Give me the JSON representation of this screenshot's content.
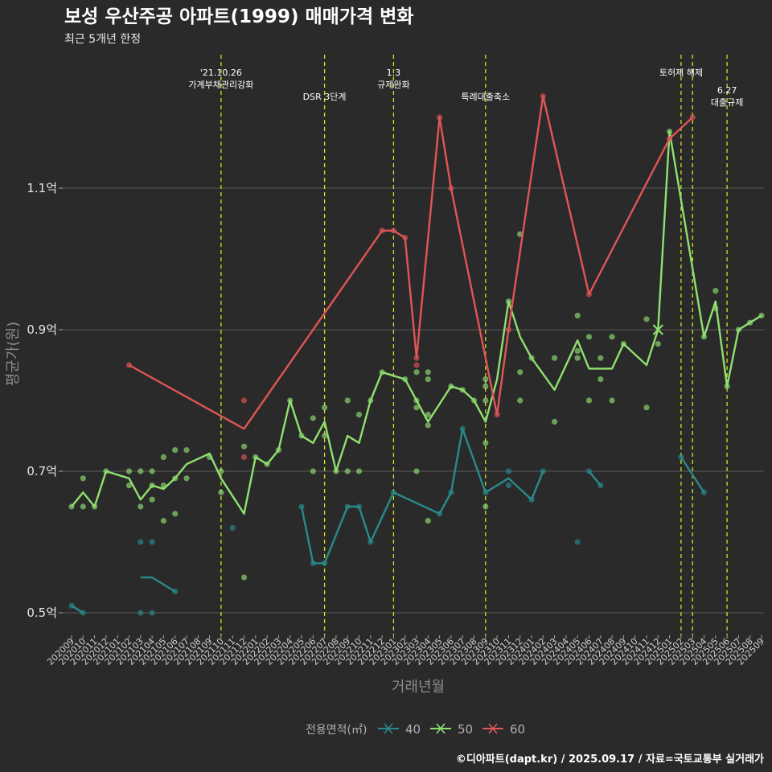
{
  "chart_data": {
    "type": "line",
    "title": "보성 우산주공 아파트(1999) 매매가격 변화",
    "subtitle": "최근 5개년 한정",
    "xlabel": "거래년월",
    "ylabel": "평균가(원)",
    "caption": "©디아파트(dapt.kr) / 2025.09.17 / 자료=국토교통부 실거래가",
    "yticks": [
      {
        "value": 0.5,
        "label": "0.5억"
      },
      {
        "value": 0.7,
        "label": "0.7억"
      },
      {
        "value": 0.9,
        "label": "0.9억"
      },
      {
        "value": 1.1,
        "label": "1.1억"
      }
    ],
    "ylim": [
      0.47,
      1.25
    ],
    "grid": true,
    "legend_position": "bottom",
    "x": [
      "202009",
      "202010",
      "202011",
      "202012",
      "202101",
      "202102",
      "202103",
      "202104",
      "202105",
      "202106",
      "202107",
      "202108",
      "202109",
      "202110",
      "202111",
      "202112",
      "202201",
      "202202",
      "202203",
      "202204",
      "202205",
      "202206",
      "202207",
      "202208",
      "202209",
      "202210",
      "202211",
      "202212",
      "202301",
      "202302",
      "202303",
      "202304",
      "202305",
      "202306",
      "202307",
      "202308",
      "202309",
      "202310",
      "202311",
      "202312",
      "202401",
      "202402",
      "202403",
      "202404",
      "202405",
      "202406",
      "202407",
      "202408",
      "202409",
      "202410",
      "202411",
      "202412",
      "202501",
      "202502",
      "202503",
      "202504",
      "202505",
      "202506",
      "202507",
      "202508",
      "202509"
    ],
    "legend": {
      "title": "전용면적(㎡)",
      "items": [
        {
          "label": "40",
          "color": "#2a8a8a"
        },
        {
          "label": "50",
          "color": "#90e070"
        },
        {
          "label": "60",
          "color": "#e05555"
        }
      ]
    },
    "annotations": [
      {
        "x": "202110",
        "lines": [
          "'21.10.26",
          "가계부채관리강화"
        ],
        "tier": 1
      },
      {
        "x": "202207",
        "lines": [
          "DSR 3단계"
        ],
        "tier": 2
      },
      {
        "x": "202301",
        "lines": [
          "1.3",
          "규제완화"
        ],
        "tier": 1
      },
      {
        "x": "202309",
        "lines": [
          "특례대출축소"
        ],
        "tier": 2
      },
      {
        "x": "202502",
        "lines": [
          "토허제 해제"
        ],
        "tier": 1
      },
      {
        "x": "202503",
        "lines": [],
        "tier": 0
      },
      {
        "x": "202506",
        "lines": [
          "6.27",
          "대출규제"
        ],
        "tier": 2
      }
    ],
    "series": [
      {
        "name": "40",
        "color": "#2a8a8a",
        "line": [
          [
            "202009",
            0.51
          ],
          [
            "202010",
            0.5
          ],
          null,
          [
            "202103",
            0.55
          ],
          [
            "202104",
            0.55
          ],
          [
            "202106",
            0.53
          ],
          null,
          [
            "202205",
            0.65
          ],
          [
            "202206",
            0.57
          ],
          [
            "202207",
            0.57
          ],
          [
            "202209",
            0.65
          ],
          [
            "202210",
            0.65
          ],
          [
            "202211",
            0.6
          ],
          [
            "202301",
            0.67
          ],
          [
            "202305",
            0.64
          ],
          [
            "202306",
            0.67
          ],
          [
            "202307",
            0.76
          ],
          [
            "202309",
            0.67
          ],
          [
            "202311",
            0.69
          ],
          [
            "202401",
            0.66
          ],
          [
            "202402",
            0.7
          ],
          null,
          [
            "202406",
            0.7
          ],
          [
            "202407",
            0.68
          ],
          null,
          [
            "202502",
            0.72
          ],
          [
            "202504",
            0.67
          ]
        ],
        "points": [
          [
            "202009",
            0.51
          ],
          [
            "202010",
            0.5
          ],
          [
            "202103",
            0.6
          ],
          [
            "202104",
            0.6
          ],
          [
            "202103",
            0.5
          ],
          [
            "202104",
            0.5
          ],
          [
            "202106",
            0.53
          ],
          [
            "202111",
            0.62
          ],
          [
            "202205",
            0.65
          ],
          [
            "202206",
            0.57
          ],
          [
            "202207",
            0.57
          ],
          [
            "202209",
            0.65
          ],
          [
            "202210",
            0.65
          ],
          [
            "202211",
            0.6
          ],
          [
            "202301",
            0.67
          ],
          [
            "202305",
            0.64
          ],
          [
            "202306",
            0.67
          ],
          [
            "202307",
            0.76
          ],
          [
            "202309",
            0.67
          ],
          [
            "202311",
            0.7
          ],
          [
            "202311",
            0.68
          ],
          [
            "202401",
            0.66
          ],
          [
            "202402",
            0.7
          ],
          [
            "202405",
            0.6
          ],
          [
            "202406",
            0.7
          ],
          [
            "202407",
            0.68
          ],
          [
            "202502",
            0.72
          ],
          [
            "202504",
            0.67
          ]
        ]
      },
      {
        "name": "50",
        "color": "#90e070",
        "line": [
          [
            "202009",
            0.65
          ],
          [
            "202010",
            0.67
          ],
          [
            "202011",
            0.65
          ],
          [
            "202012",
            0.7
          ],
          [
            "202102",
            0.69
          ],
          [
            "202103",
            0.66
          ],
          [
            "202104",
            0.68
          ],
          [
            "202105",
            0.675
          ],
          [
            "202106",
            0.69
          ],
          [
            "202107",
            0.71
          ],
          [
            "202109",
            0.725
          ],
          [
            "202110",
            0.69
          ],
          [
            "202112",
            0.64
          ],
          [
            "202201",
            0.72
          ],
          [
            "202202",
            0.71
          ],
          [
            "202203",
            0.73
          ],
          [
            "202204",
            0.8
          ],
          [
            "202205",
            0.75
          ],
          [
            "202206",
            0.74
          ],
          [
            "202207",
            0.77
          ],
          [
            "202208",
            0.7
          ],
          [
            "202209",
            0.75
          ],
          [
            "202210",
            0.74
          ],
          [
            "202211",
            0.8
          ],
          [
            "202212",
            0.84
          ],
          [
            "202302",
            0.83
          ],
          [
            "202304",
            0.77
          ],
          [
            "202306",
            0.82
          ],
          [
            "202307",
            0.815
          ],
          [
            "202308",
            0.8
          ],
          [
            "202309",
            0.77
          ],
          [
            "202310",
            0.83
          ],
          [
            "202311",
            0.94
          ],
          [
            "202312",
            0.89
          ],
          [
            "202401",
            0.86
          ],
          [
            "202403",
            0.815
          ],
          [
            "202405",
            0.885
          ],
          [
            "202406",
            0.845
          ],
          [
            "202408",
            0.845
          ],
          [
            "202409",
            0.88
          ],
          [
            "202411",
            0.85
          ],
          [
            "202412",
            0.9
          ],
          [
            "202501",
            1.18
          ],
          [
            "202504",
            0.89
          ],
          [
            "202505",
            0.94
          ],
          [
            "202506",
            0.82
          ],
          [
            "202507",
            0.9
          ],
          [
            "202508",
            0.91
          ],
          [
            "202509",
            0.92
          ]
        ],
        "points": [
          [
            "202009",
            0.65
          ],
          [
            "202010",
            0.69
          ],
          [
            "202010",
            0.65
          ],
          [
            "202011",
            0.65
          ],
          [
            "202012",
            0.7
          ],
          [
            "202102",
            0.7
          ],
          [
            "202102",
            0.68
          ],
          [
            "202103",
            0.7
          ],
          [
            "202103",
            0.65
          ],
          [
            "202104",
            0.7
          ],
          [
            "202104",
            0.68
          ],
          [
            "202104",
            0.66
          ],
          [
            "202105",
            0.72
          ],
          [
            "202105",
            0.68
          ],
          [
            "202105",
            0.63
          ],
          [
            "202106",
            0.73
          ],
          [
            "202106",
            0.69
          ],
          [
            "202106",
            0.64
          ],
          [
            "202107",
            0.73
          ],
          [
            "202107",
            0.69
          ],
          [
            "202109",
            0.72
          ],
          [
            "202110",
            0.7
          ],
          [
            "202110",
            0.67
          ],
          [
            "202112",
            0.735
          ],
          [
            "202112",
            0.55
          ],
          [
            "202201",
            0.72
          ],
          [
            "202202",
            0.71
          ],
          [
            "202203",
            0.73
          ],
          [
            "202204",
            0.8
          ],
          [
            "202205",
            0.75
          ],
          [
            "202206",
            0.775
          ],
          [
            "202206",
            0.7
          ],
          [
            "202207",
            0.79
          ],
          [
            "202207",
            0.75
          ],
          [
            "202208",
            0.7
          ],
          [
            "202209",
            0.8
          ],
          [
            "202209",
            0.7
          ],
          [
            "202210",
            0.78
          ],
          [
            "202210",
            0.7
          ],
          [
            "202211",
            0.8
          ],
          [
            "202212",
            0.84
          ],
          [
            "202302",
            0.83
          ],
          [
            "202303",
            0.84
          ],
          [
            "202303",
            0.8
          ],
          [
            "202303",
            0.79
          ],
          [
            "202303",
            0.7
          ],
          [
            "202304",
            0.84
          ],
          [
            "202304",
            0.83
          ],
          [
            "202304",
            0.78
          ],
          [
            "202304",
            0.765
          ],
          [
            "202304",
            0.63
          ],
          [
            "202306",
            0.82
          ],
          [
            "202307",
            0.815
          ],
          [
            "202308",
            0.8
          ],
          [
            "202309",
            0.83
          ],
          [
            "202309",
            0.82
          ],
          [
            "202309",
            0.8
          ],
          [
            "202309",
            0.74
          ],
          [
            "202309",
            0.65
          ],
          [
            "202311",
            0.94
          ],
          [
            "202312",
            1.035
          ],
          [
            "202312",
            0.84
          ],
          [
            "202312",
            0.8
          ],
          [
            "202401",
            0.86
          ],
          [
            "202403",
            0.86
          ],
          [
            "202403",
            0.77
          ],
          [
            "202405",
            0.92
          ],
          [
            "202405",
            0.87
          ],
          [
            "202405",
            0.86
          ],
          [
            "202406",
            0.89
          ],
          [
            "202406",
            0.8
          ],
          [
            "202407",
            0.86
          ],
          [
            "202407",
            0.83
          ],
          [
            "202408",
            0.89
          ],
          [
            "202408",
            0.8
          ],
          [
            "202409",
            0.88
          ],
          [
            "202411",
            0.915
          ],
          [
            "202411",
            0.79
          ],
          [
            "202412",
            0.88
          ],
          [
            "202501",
            1.18
          ],
          [
            "202504",
            0.89
          ],
          [
            "202505",
            0.955
          ],
          [
            "202505",
            0.93
          ],
          [
            "202506",
            0.82
          ],
          [
            "202507",
            0.9
          ],
          [
            "202508",
            0.91
          ],
          [
            "202509",
            0.92
          ]
        ],
        "cross": [
          [
            "202412",
            0.9
          ]
        ]
      },
      {
        "name": "60",
        "color": "#e05555",
        "line": [
          [
            "202102",
            0.85
          ],
          [
            "202112",
            0.76
          ],
          [
            "202212",
            1.04
          ],
          [
            "202301",
            1.04
          ],
          [
            "202302",
            1.03
          ],
          [
            "202303",
            0.86
          ],
          [
            "202305",
            1.2
          ],
          [
            "202306",
            1.1
          ],
          [
            "202310",
            0.78
          ],
          [
            "202311",
            0.9
          ],
          [
            "202402",
            1.23
          ],
          [
            "202406",
            0.95
          ],
          [
            "202501",
            1.17
          ],
          [
            "202503",
            1.2
          ]
        ],
        "points": [
          [
            "202102",
            0.85
          ],
          [
            "202112",
            0.8
          ],
          [
            "202112",
            0.72
          ],
          [
            "202212",
            1.04
          ],
          [
            "202301",
            1.04
          ],
          [
            "202302",
            1.03
          ],
          [
            "202303",
            0.86
          ],
          [
            "202303",
            0.85
          ],
          [
            "202305",
            1.2
          ],
          [
            "202306",
            1.1
          ],
          [
            "202310",
            0.78
          ],
          [
            "202311",
            0.9
          ],
          [
            "202402",
            1.23
          ],
          [
            "202406",
            0.95
          ],
          [
            "202501",
            1.17
          ],
          [
            "202503",
            1.2
          ]
        ]
      }
    ]
  }
}
